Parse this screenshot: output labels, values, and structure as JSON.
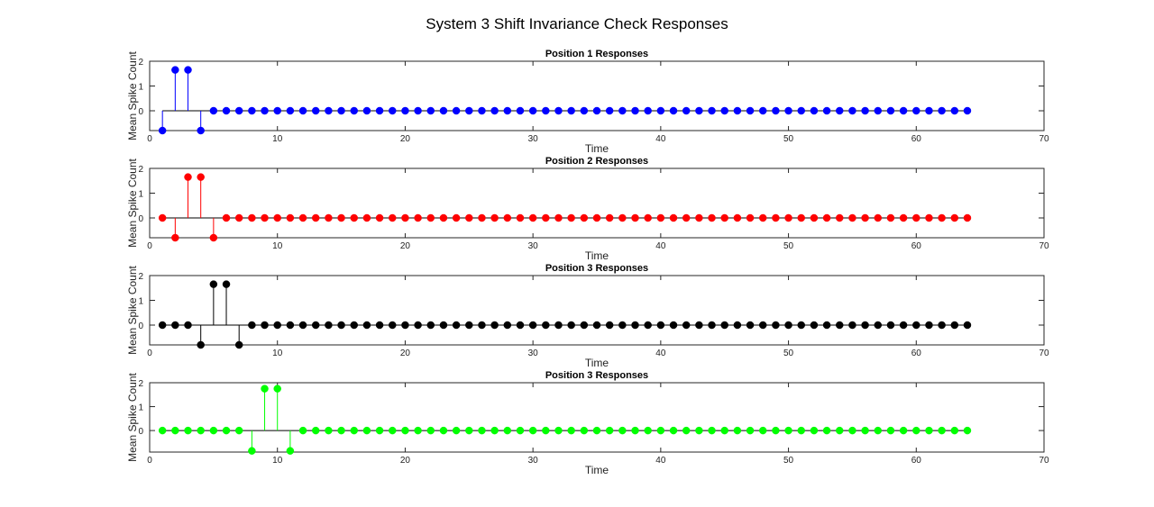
{
  "figure": {
    "title": "System 3 Shift Invariance Check Responses"
  },
  "chart_data": [
    {
      "type": "stem",
      "title": "Position 1 Responses",
      "xlabel": "Time",
      "ylabel": "Mean Spike Count",
      "xlim": [
        0,
        70
      ],
      "ylim": [
        -0.8,
        2
      ],
      "xticks": [
        "0",
        "10",
        "20",
        "30",
        "40",
        "50",
        "60",
        "70"
      ],
      "yticks": [
        "0",
        "1",
        "2"
      ],
      "color": "#0000ff",
      "x_start": 1,
      "values": [
        -0.8,
        1.65,
        1.65,
        -0.8,
        0,
        0,
        0,
        0,
        0,
        0,
        0,
        0,
        0,
        0,
        0,
        0,
        0,
        0,
        0,
        0,
        0,
        0,
        0,
        0,
        0,
        0,
        0,
        0,
        0,
        0,
        0,
        0,
        0,
        0,
        0,
        0,
        0,
        0,
        0,
        0,
        0,
        0,
        0,
        0,
        0,
        0,
        0,
        0,
        0,
        0,
        0,
        0,
        0,
        0,
        0,
        0,
        0,
        0,
        0,
        0,
        0,
        0,
        0,
        0
      ]
    },
    {
      "type": "stem",
      "title": "Position 2 Responses",
      "xlabel": "Time",
      "ylabel": "Mean Spike Count",
      "xlim": [
        0,
        70
      ],
      "ylim": [
        -0.8,
        2
      ],
      "xticks": [
        "0",
        "10",
        "20",
        "30",
        "40",
        "50",
        "60",
        "70"
      ],
      "yticks": [
        "0",
        "1",
        "2"
      ],
      "color": "#ff0000",
      "x_start": 1,
      "values": [
        0,
        -0.8,
        1.65,
        1.65,
        -0.8,
        0,
        0,
        0,
        0,
        0,
        0,
        0,
        0,
        0,
        0,
        0,
        0,
        0,
        0,
        0,
        0,
        0,
        0,
        0,
        0,
        0,
        0,
        0,
        0,
        0,
        0,
        0,
        0,
        0,
        0,
        0,
        0,
        0,
        0,
        0,
        0,
        0,
        0,
        0,
        0,
        0,
        0,
        0,
        0,
        0,
        0,
        0,
        0,
        0,
        0,
        0,
        0,
        0,
        0,
        0,
        0,
        0,
        0,
        0
      ]
    },
    {
      "type": "stem",
      "title": "Position 3 Responses",
      "xlabel": "Time",
      "ylabel": "Mean Spike Count",
      "xlim": [
        0,
        70
      ],
      "ylim": [
        -0.8,
        2
      ],
      "xticks": [
        "0",
        "10",
        "20",
        "30",
        "40",
        "50",
        "60",
        "70"
      ],
      "yticks": [
        "0",
        "1",
        "2"
      ],
      "color": "#000000",
      "x_start": 1,
      "values": [
        0,
        0,
        0,
        -0.8,
        1.65,
        1.65,
        -0.8,
        0,
        0,
        0,
        0,
        0,
        0,
        0,
        0,
        0,
        0,
        0,
        0,
        0,
        0,
        0,
        0,
        0,
        0,
        0,
        0,
        0,
        0,
        0,
        0,
        0,
        0,
        0,
        0,
        0,
        0,
        0,
        0,
        0,
        0,
        0,
        0,
        0,
        0,
        0,
        0,
        0,
        0,
        0,
        0,
        0,
        0,
        0,
        0,
        0,
        0,
        0,
        0,
        0,
        0,
        0,
        0,
        0
      ]
    },
    {
      "type": "stem",
      "title": "Position 3 Responses",
      "xlabel": "Time",
      "ylabel": "Mean Spike Count",
      "xlim": [
        0,
        70
      ],
      "ylim": [
        -0.9,
        2
      ],
      "xticks": [
        "0",
        "10",
        "20",
        "30",
        "40",
        "50",
        "60",
        "70"
      ],
      "yticks": [
        "0",
        "1",
        "2"
      ],
      "color": "#00ff00",
      "x_start": 1,
      "values": [
        0,
        0,
        0,
        0,
        0,
        0,
        0,
        -0.85,
        1.75,
        1.75,
        -0.85,
        0,
        0,
        0,
        0,
        0,
        0,
        0,
        0,
        0,
        0,
        0,
        0,
        0,
        0,
        0,
        0,
        0,
        0,
        0,
        0,
        0,
        0,
        0,
        0,
        0,
        0,
        0,
        0,
        0,
        0,
        0,
        0,
        0,
        0,
        0,
        0,
        0,
        0,
        0,
        0,
        0,
        0,
        0,
        0,
        0,
        0,
        0,
        0,
        0,
        0,
        0,
        0,
        0
      ]
    }
  ]
}
